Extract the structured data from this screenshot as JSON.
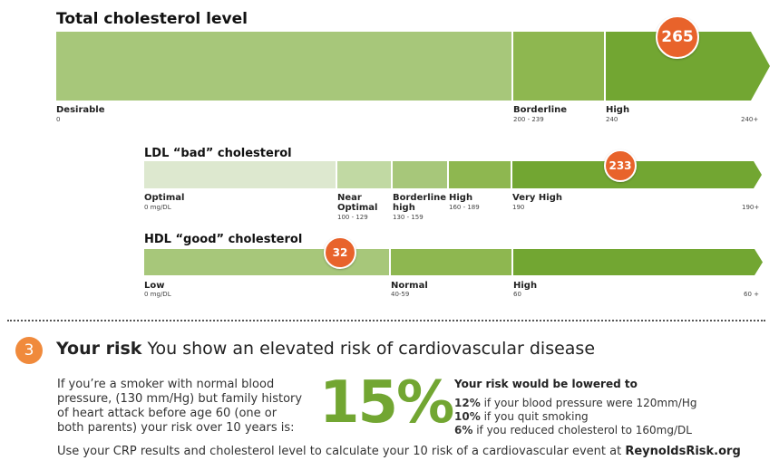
{
  "chart_data": [
    {
      "type": "bar",
      "title": "Total cholesterol level",
      "categories": [
        {
          "label": "Desirable",
          "range": "0"
        },
        {
          "label": "Borderline",
          "range": "200 - 239"
        },
        {
          "label": "High",
          "range": "240"
        }
      ],
      "end_label": "240+",
      "value": 265
    },
    {
      "type": "bar",
      "title": "LDL “bad” cholesterol",
      "categories": [
        {
          "label": "Optimal",
          "range": "0 mg/DL"
        },
        {
          "label": "Near Optimal",
          "range": "100 - 129"
        },
        {
          "label": "Borderline high",
          "range": "130 - 159"
        },
        {
          "label": "High",
          "range": "160 - 189"
        },
        {
          "label": "Very High",
          "range": "190"
        }
      ],
      "end_label": "190+",
      "value": 233
    },
    {
      "type": "bar",
      "title": "HDL “good” cholesterol",
      "categories": [
        {
          "label": "Low",
          "range": "0 mg/DL"
        },
        {
          "label": "Normal",
          "range": "40-59"
        },
        {
          "label": "High",
          "range": "60"
        }
      ],
      "end_label": "60 +",
      "value": 32
    }
  ],
  "colors": {
    "green_1": "#dde8cf",
    "green_2": "#c1d9a3",
    "green_3": "#a7c77a",
    "green_4": "#8eb750",
    "green_5": "#72a632",
    "marker": "#e8632b",
    "accent": "#72a632"
  },
  "risk": {
    "step_number": "3",
    "heading_bold": "Your risk",
    "heading_text": "You show an elevated risk of cardiovascular disease",
    "smoker_text": "If you’re a smoker with normal blood pressure, (130 mm/Hg) but family history of heart attack before age 60 (one or both parents) your risk over 10 years is:",
    "big_percent": "15%",
    "lowered_title": "Your risk would be lowered to",
    "lowered": [
      {
        "percent": "12%",
        "text": "if your blood pressure were 120mm/Hg"
      },
      {
        "percent": "10%",
        "text": "if you quit smoking"
      },
      {
        "percent": "6%",
        "text": "if you reduced cholesterol to 160mg/DL"
      }
    ],
    "footer_text": "Use your CRP results and cholesterol level to calculate your 10 risk of a cardiovascular event at",
    "footer_link": "ReynoldsRisk.org"
  }
}
